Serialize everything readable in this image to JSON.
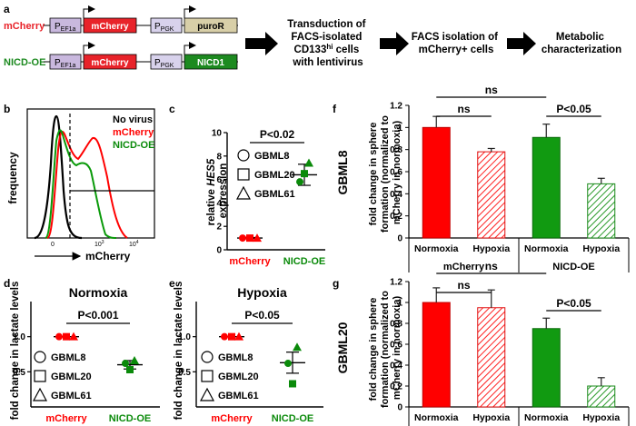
{
  "panel_labels": {
    "a": "a",
    "b": "b",
    "c": "c",
    "d": "d",
    "e": "e",
    "f": "f",
    "g": "g"
  },
  "colors": {
    "red": "#ff0000",
    "green": "#0a8a0a",
    "purple": "#c9b8de",
    "mcherry_box": "#e8232a",
    "nicd_box": "#1d8a20",
    "puro_box": "#d8cfa8",
    "pgk_box": "#d8d2ec"
  },
  "panel_a": {
    "construct1_label": "mCherry",
    "construct2_label": "NICD-OE",
    "boxes": {
      "pef_main": "P",
      "pef_sub": "EF1a",
      "mcherry": "mCherry",
      "ppgk_main": "P",
      "ppgk_sub": "PGK",
      "puror": "puroR",
      "nicd1": "NICD1"
    },
    "step1": [
      "Transduction of",
      "FACS-isolated",
      "CD133",
      "hi",
      " cells",
      "with lentivirus"
    ],
    "step2": [
      "FACS isolation of",
      "mCherry+ cells"
    ],
    "step3": [
      "Metabolic",
      "characterization"
    ]
  },
  "panel_b": {
    "ylabel": "frequency",
    "xlabel": "mCherry",
    "legend": [
      "No virus",
      "mCherry",
      "NICD-OE"
    ],
    "tick_labels": [
      "0",
      "10",
      "3",
      "10",
      "4"
    ]
  },
  "chart_data": [
    {
      "panel": "c",
      "type": "scatter",
      "title": "P<0.02",
      "ylabel_parts": [
        "relative ",
        "HES5",
        " expression"
      ],
      "ylim": [
        0,
        10
      ],
      "yticks": [
        0,
        2,
        4,
        6,
        8,
        10
      ],
      "categories": [
        "mCherry",
        "NICD-OE"
      ],
      "series": [
        {
          "name": "GBML8",
          "marker": "circle",
          "values": [
            1.0,
            5.8
          ]
        },
        {
          "name": "GBML20",
          "marker": "square",
          "values": [
            1.0,
            6.5
          ]
        },
        {
          "name": "GBML61",
          "marker": "triangle",
          "values": [
            1.0,
            7.4
          ]
        }
      ],
      "means": [
        1.0,
        6.4
      ],
      "sem": [
        0.05,
        0.9
      ]
    },
    {
      "panel": "d",
      "type": "scatter",
      "title": "Normoxia",
      "annotation": "P<0.001",
      "ylabel": "fold change in lactate levels",
      "ylim": [
        0,
        1.5
      ],
      "yticks": [
        0.5,
        1.0
      ],
      "categories": [
        "mCherry",
        "NICD-OE"
      ],
      "series": [
        {
          "name": "GBML8",
          "marker": "circle",
          "values": [
            1.0,
            0.62
          ]
        },
        {
          "name": "GBML20",
          "marker": "square",
          "values": [
            1.0,
            0.53
          ]
        },
        {
          "name": "GBML61",
          "marker": "triangle",
          "values": [
            1.0,
            0.66
          ]
        }
      ],
      "means": [
        1.0,
        0.6
      ],
      "sem": [
        0.0,
        0.06
      ]
    },
    {
      "panel": "e",
      "type": "scatter",
      "title": "Hypoxia",
      "annotation": "P<0.05",
      "ylabel": "fold change in lactate levels",
      "ylim": [
        0,
        1.5
      ],
      "yticks": [
        0.5,
        1.0
      ],
      "categories": [
        "mCherry",
        "NICD-OE"
      ],
      "series": [
        {
          "name": "GBML8",
          "marker": "circle",
          "values": [
            1.0,
            0.62
          ]
        },
        {
          "name": "GBML20",
          "marker": "square",
          "values": [
            1.0,
            0.33
          ]
        },
        {
          "name": "GBML61",
          "marker": "triangle",
          "values": [
            1.0,
            0.85
          ]
        }
      ],
      "means": [
        1.0,
        0.63
      ],
      "sem": [
        0.0,
        0.15
      ]
    },
    {
      "panel": "f",
      "type": "bar",
      "side_label": "GBML8",
      "ylabel": [
        "fold change in sphere",
        "formation (normalized to",
        "mCherry in normoxia)"
      ],
      "ylim": [
        0,
        1.2
      ],
      "yticks": [
        0,
        0.2,
        0.4,
        0.6,
        0.8,
        1.0,
        1.2
      ],
      "categories": [
        "Normoxia",
        "Hypoxia",
        "Normoxia",
        "Hypoxia"
      ],
      "groups": [
        "mCherry",
        "NICD-OE"
      ],
      "values": [
        1.0,
        0.78,
        0.91,
        0.49
      ],
      "errors": [
        0.1,
        0.03,
        0.12,
        0.05
      ],
      "annotations": [
        "ns",
        "ns",
        "P<0.05"
      ]
    },
    {
      "panel": "g",
      "type": "bar",
      "side_label": "GBML20",
      "ylabel": [
        "fold change in sphere",
        "formation (normalized to",
        "mCherry in normoxia)"
      ],
      "ylim": [
        0,
        1.2
      ],
      "yticks": [
        0,
        0.2,
        0.4,
        0.6,
        0.8,
        1.0,
        1.2
      ],
      "categories": [
        "Normoxia",
        "Hypoxia",
        "Normoxia",
        "Hypoxia"
      ],
      "groups": [
        "mCherry",
        "NICD-OE"
      ],
      "values": [
        1.0,
        0.95,
        0.75,
        0.2
      ],
      "errors": [
        0.14,
        0.17,
        0.1,
        0.08
      ],
      "annotations": [
        "ns",
        "ns",
        "P<0.05"
      ]
    }
  ]
}
